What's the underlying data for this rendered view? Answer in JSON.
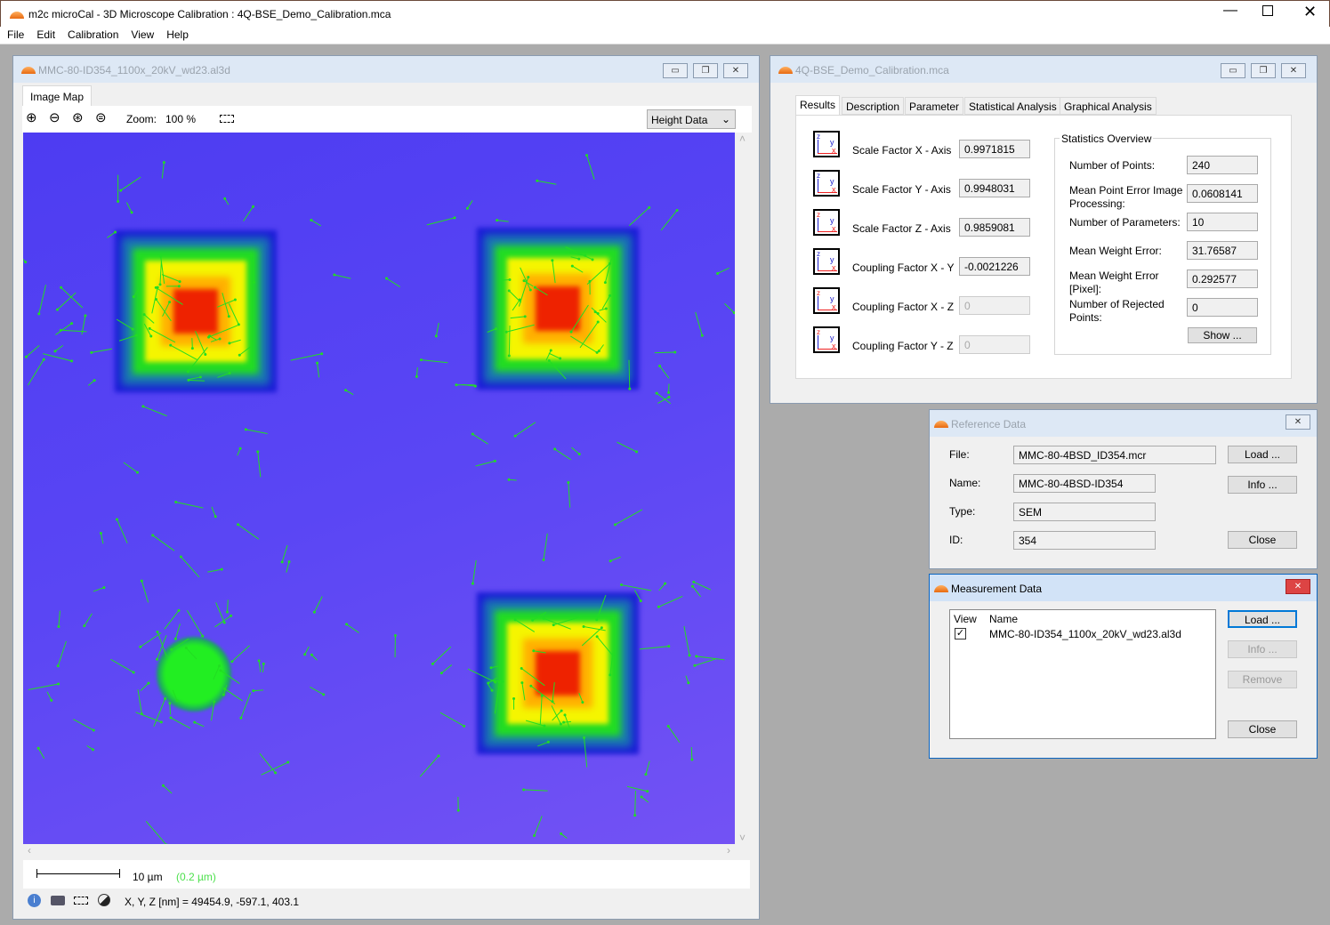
{
  "app": {
    "title": "m2c microCal - 3D Microscope Calibration : 4Q-BSE_Demo_Calibration.mca",
    "menu": [
      "File",
      "Edit",
      "Calibration",
      "View",
      "Help"
    ]
  },
  "image_window": {
    "title": "MMC-80-ID354_1100x_20kV_wd23.al3d",
    "tab": "Image Map",
    "zoom_label": "Zoom:",
    "zoom_value": "100 %",
    "display_select": "Height Data",
    "scale_bar": "10 µm",
    "scale_sub": "(0.2 µm)",
    "coords": "X, Y, Z [nm] = 49454.9, -597.1, 403.1"
  },
  "calib_window": {
    "title": "4Q-BSE_Demo_Calibration.mca",
    "tabs": [
      "Results",
      "Description",
      "Parameter",
      "Statistical Analysis",
      "Graphical Analysis"
    ],
    "active_tab": "Results",
    "results": [
      {
        "label": "Scale Factor X - Axis",
        "value": "0.9971815"
      },
      {
        "label": "Scale Factor Y - Axis",
        "value": "0.9948031"
      },
      {
        "label": "Scale Factor Z - Axis",
        "value": "0.9859081"
      },
      {
        "label": "Coupling Factor X - Y",
        "value": "-0.0021226"
      },
      {
        "label": "Coupling Factor X - Z",
        "value": "0"
      },
      {
        "label": "Coupling Factor Y - Z",
        "value": "0"
      }
    ],
    "stats": {
      "title": "Statistics Overview",
      "rows": [
        {
          "label": "Number of Points:",
          "value": "240"
        },
        {
          "label": "Mean Point Error Image Processing:",
          "value": "0.0608141"
        },
        {
          "label": "Number of Parameters:",
          "value": "10"
        },
        {
          "label": "Mean Weight Error:",
          "value": "31.76587"
        },
        {
          "label": "Mean Weight Error [Pixel]:",
          "value": "0.292577"
        },
        {
          "label": "Number of Rejected Points:",
          "value": "0"
        }
      ],
      "show_button": "Show ..."
    }
  },
  "reference": {
    "title": "Reference Data",
    "fields": [
      {
        "label": "File:",
        "value": "MMC-80-4BSD_ID354.mcr"
      },
      {
        "label": "Name:",
        "value": "MMC-80-4BSD-ID354"
      },
      {
        "label": "Type:",
        "value": "SEM"
      },
      {
        "label": "ID:",
        "value": "354"
      }
    ],
    "buttons": [
      "Load ...",
      "Info ...",
      "Close"
    ]
  },
  "measurement": {
    "title": "Measurement Data",
    "columns": [
      "View",
      "Name"
    ],
    "rows": [
      {
        "checked": true,
        "name": "MMC-80-ID354_1100x_20kV_wd23.al3d"
      }
    ],
    "buttons": [
      "Load ...",
      "Info ...",
      "Remove",
      "Close"
    ]
  },
  "colors": {
    "accent": "#0078d7",
    "vector": "#22dd22",
    "background": "#5a3cf0"
  }
}
